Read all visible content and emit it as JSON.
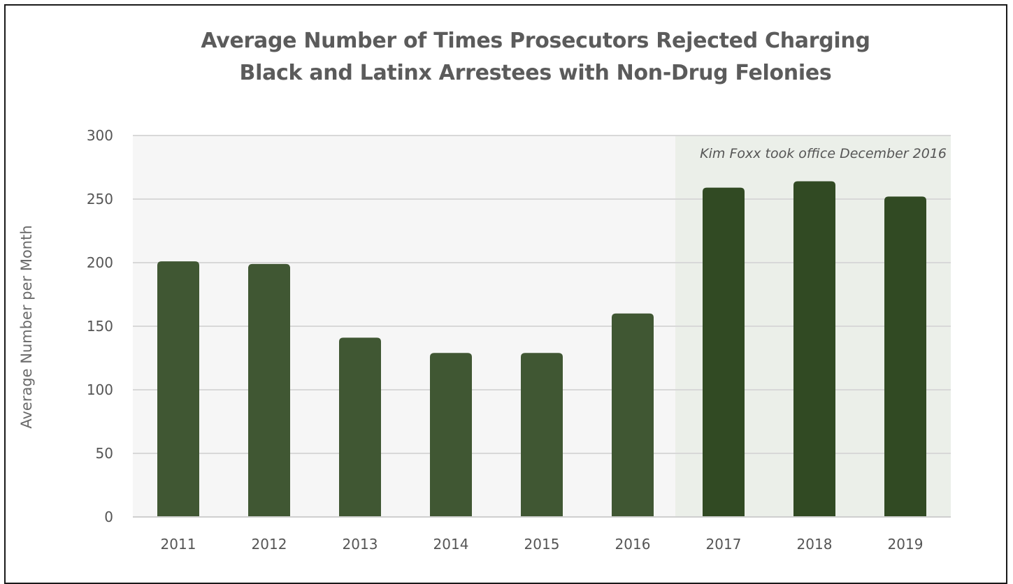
{
  "chart_data": {
    "type": "bar",
    "title": [
      "Average Number of Times Prosecutors Rejected Charging",
      "Black and Latinx Arrestees with Non-Drug Felonies"
    ],
    "xlabel": "",
    "ylabel": "Average Number per Month",
    "categories": [
      "2011",
      "2012",
      "2013",
      "2014",
      "2015",
      "2016",
      "2017",
      "2018",
      "2019"
    ],
    "values": [
      201,
      199,
      141,
      129,
      129,
      160,
      259,
      264,
      252
    ],
    "ylim": [
      0,
      300
    ],
    "yticks": [
      0,
      50,
      100,
      150,
      200,
      250,
      300
    ],
    "grid": true,
    "colors": {
      "before": "#405733",
      "after": "#314a23",
      "plot_background": "#f6f6f6",
      "highlight_background": "#ebefe9",
      "gridline": "#d8d8d8"
    },
    "highlight": {
      "from_category": "2017",
      "to_category": "2019",
      "annotation": "Kim Foxx took office December 2016"
    }
  }
}
